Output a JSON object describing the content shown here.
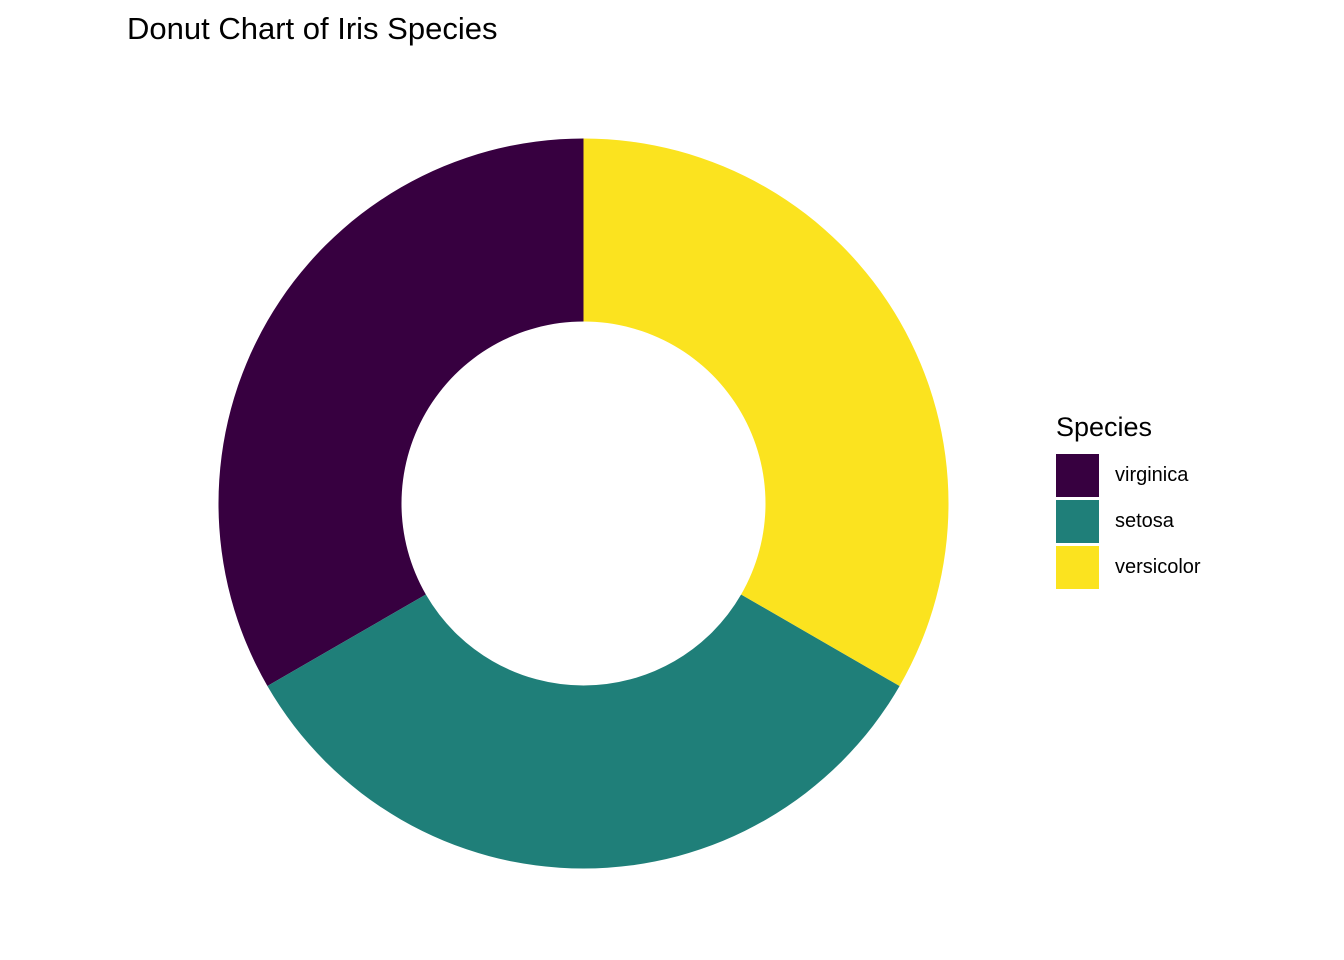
{
  "chart_data": {
    "type": "pie",
    "subtype": "donut",
    "title": "Donut Chart of Iris Species",
    "legend_title": "Species",
    "legend_position": "right",
    "categories": [
      "virginica",
      "setosa",
      "versicolor"
    ],
    "values": [
      50,
      50,
      50
    ],
    "colors": [
      "#370040",
      "#1f7f79",
      "#fbe31f"
    ],
    "grid": false
  },
  "legend": {
    "title": "Species",
    "items": [
      {
        "label": "virginica",
        "color": "#370040"
      },
      {
        "label": "setosa",
        "color": "#1f7f79"
      },
      {
        "label": "versicolor",
        "color": "#fbe31f"
      }
    ]
  }
}
